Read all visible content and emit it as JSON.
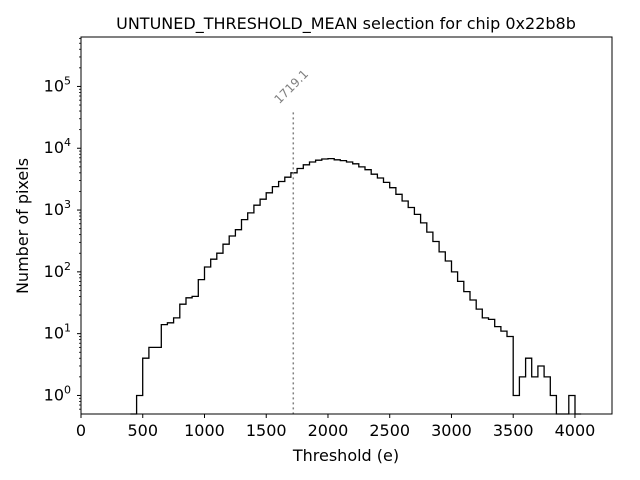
{
  "chart_data": {
    "type": "histogram",
    "title": "UNTUNED_THRESHOLD_MEAN selection for chip 0x22b8b",
    "xlabel": "Threshold (e)",
    "ylabel": "Number of pixels",
    "xlim": [
      0,
      4300
    ],
    "ylim_log10": [
      -0.3,
      5.8
    ],
    "yscale": "log",
    "xticks": [
      0,
      500,
      1000,
      1500,
      2000,
      2500,
      3000,
      3500,
      4000
    ],
    "xtick_labels": [
      "0",
      "500",
      "1000",
      "1500",
      "2000",
      "2500",
      "3000",
      "3500",
      "4000"
    ],
    "yticks_log10": [
      0,
      1,
      2,
      3,
      4,
      5
    ],
    "ytick_bases": [
      "10",
      "10",
      "10",
      "10",
      "10",
      "10"
    ],
    "ytick_exponents": [
      "0",
      "1",
      "2",
      "3",
      "4",
      "5"
    ],
    "bin_width": 50,
    "bin_start": 400,
    "counts": [
      0,
      1,
      4,
      6,
      6,
      14,
      15,
      18,
      30,
      38,
      40,
      75,
      120,
      160,
      200,
      280,
      380,
      480,
      700,
      900,
      1200,
      1500,
      1900,
      2400,
      2900,
      3400,
      4000,
      4700,
      5400,
      6000,
      6400,
      6700,
      6800,
      6500,
      6300,
      6000,
      5600,
      5000,
      4500,
      3800,
      3300,
      2800,
      2300,
      1800,
      1400,
      1100,
      850,
      620,
      440,
      310,
      210,
      150,
      100,
      70,
      48,
      35,
      25,
      18,
      17,
      13,
      11,
      9,
      1,
      2,
      4,
      2,
      3,
      2,
      1,
      0,
      0,
      1,
      0
    ],
    "mean_marker": {
      "x": 1719.1,
      "label": "1719.1",
      "top_count": 38000
    },
    "line_color": "#000000",
    "marker_color": "#808080"
  }
}
